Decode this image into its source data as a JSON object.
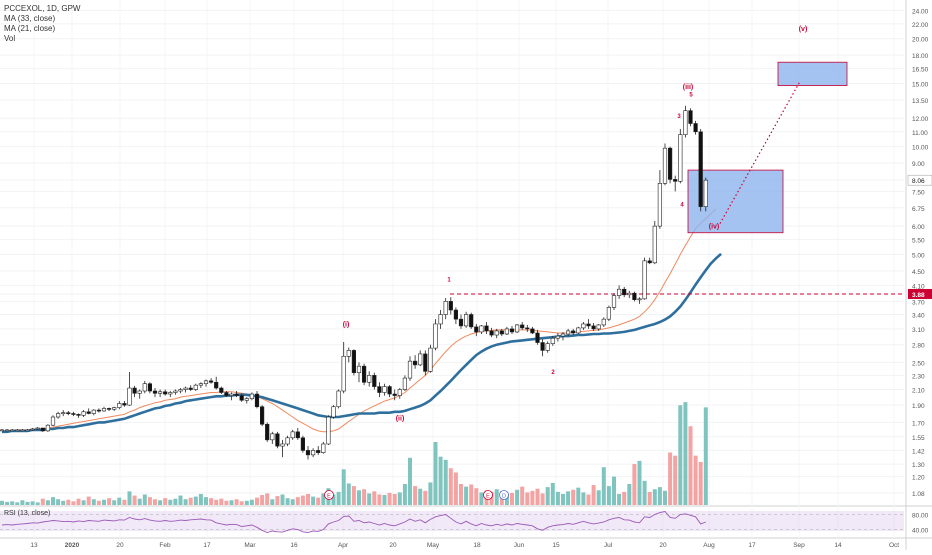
{
  "legend": {
    "symbol_line": "PCCEXOL, 1D, GPW",
    "ma33_label": "MA (33, close)",
    "ma21_label": "MA (21, close)",
    "vol_label": "Vol"
  },
  "rsi_label": "RSI (13, close)",
  "colors": {
    "up": "#ffffff",
    "up_border": "#333333",
    "down": "#111111",
    "ma33": "#2e6f9e",
    "ma21": "#f08a5d",
    "vol_up": "#7fc4be",
    "vol_down": "#f4a3a3",
    "annotation": "#cc0033",
    "box_fill": "#8fb4ee",
    "rsi_line": "#9b59b6",
    "rsi_band": "#e8d8f3"
  },
  "chart_data": {
    "type": "candlestick",
    "title": "PCCEXOL, 1D, GPW",
    "y_scale": "log",
    "y_ticks": [
      "24.00",
      "22.00",
      "20.00",
      "18.00",
      "16.50",
      "15.00",
      "13.50",
      "12.00",
      "11.00",
      "10.00",
      "9.00",
      "8.06",
      "7.50",
      "6.75",
      "6.00",
      "5.50",
      "5.00",
      "4.50",
      "4.10",
      "3.88",
      "3.70",
      "3.40",
      "3.10",
      "2.80",
      "2.50",
      "2.30",
      "2.10",
      "1.90",
      "1.70",
      "1.55",
      "1.42",
      "1.30",
      "1.20",
      "1.08"
    ],
    "x_ticks": [
      "13",
      "2020",
      "20",
      "Feb",
      "17",
      "Mar",
      "16",
      "Apr",
      "20",
      "May",
      "18",
      "Jun",
      "15",
      "Jul",
      "20",
      "Aug",
      "17",
      "Sep",
      "14",
      "Oct"
    ],
    "price_labels": {
      "last": "8.06",
      "level": "3.88"
    },
    "level_line": 3.88,
    "rsi_ticks": [
      "80.00",
      "40.00"
    ],
    "wave_labels": [
      "(i)",
      "(ii)",
      "1",
      "2",
      "(iii)",
      "3",
      "4",
      "5",
      "(iv)",
      "(v)"
    ],
    "event_markers": [
      "E",
      "E",
      "D"
    ],
    "candles": [
      [
        1.62,
        1.63,
        1.61,
        1.62
      ],
      [
        1.62,
        1.63,
        1.61,
        1.62
      ],
      [
        1.62,
        1.63,
        1.61,
        1.62
      ],
      [
        1.62,
        1.63,
        1.61,
        1.62
      ],
      [
        1.62,
        1.63,
        1.61,
        1.62
      ],
      [
        1.62,
        1.63,
        1.61,
        1.62
      ],
      [
        1.62,
        1.64,
        1.61,
        1.63
      ],
      [
        1.63,
        1.65,
        1.62,
        1.64
      ],
      [
        1.64,
        1.64,
        1.6,
        1.61
      ],
      [
        1.61,
        1.68,
        1.6,
        1.67
      ],
      [
        1.67,
        1.78,
        1.66,
        1.76
      ],
      [
        1.76,
        1.82,
        1.74,
        1.8
      ],
      [
        1.8,
        1.84,
        1.77,
        1.81
      ],
      [
        1.81,
        1.83,
        1.78,
        1.8
      ],
      [
        1.8,
        1.82,
        1.77,
        1.79
      ],
      [
        1.79,
        1.8,
        1.75,
        1.78
      ],
      [
        1.78,
        1.84,
        1.76,
        1.82
      ],
      [
        1.82,
        1.86,
        1.79,
        1.8
      ],
      [
        1.8,
        1.85,
        1.78,
        1.84
      ],
      [
        1.84,
        1.86,
        1.81,
        1.83
      ],
      [
        1.83,
        1.88,
        1.82,
        1.86
      ],
      [
        1.86,
        1.87,
        1.83,
        1.85
      ],
      [
        1.85,
        1.88,
        1.83,
        1.87
      ],
      [
        1.87,
        1.95,
        1.85,
        1.92
      ],
      [
        1.92,
        1.95,
        1.88,
        1.9
      ],
      [
        1.9,
        2.35,
        1.89,
        2.12
      ],
      [
        2.12,
        2.15,
        2.0,
        2.05
      ],
      [
        2.05,
        2.1,
        1.98,
        2.08
      ],
      [
        2.08,
        2.22,
        2.05,
        2.18
      ],
      [
        2.18,
        2.2,
        2.05,
        2.08
      ],
      [
        2.08,
        2.12,
        2.0,
        2.05
      ],
      [
        2.05,
        2.1,
        2.0,
        2.07
      ],
      [
        2.07,
        2.1,
        2.02,
        2.04
      ],
      [
        2.04,
        2.08,
        2.0,
        2.06
      ],
      [
        2.06,
        2.1,
        2.03,
        2.08
      ],
      [
        2.08,
        2.12,
        2.05,
        2.1
      ],
      [
        2.1,
        2.14,
        2.06,
        2.12
      ],
      [
        2.12,
        2.16,
        2.08,
        2.1
      ],
      [
        2.1,
        2.18,
        2.08,
        2.16
      ],
      [
        2.16,
        2.2,
        2.12,
        2.18
      ],
      [
        2.18,
        2.24,
        2.14,
        2.22
      ],
      [
        2.22,
        2.26,
        2.18,
        2.2
      ],
      [
        2.2,
        2.28,
        2.1,
        2.12
      ],
      [
        2.12,
        2.14,
        2.04,
        2.06
      ],
      [
        2.06,
        2.08,
        2.0,
        2.02
      ],
      [
        2.02,
        2.06,
        1.96,
        2.04
      ],
      [
        2.04,
        2.08,
        2.0,
        2.02
      ],
      [
        2.02,
        2.05,
        1.94,
        1.96
      ],
      [
        1.96,
        2.0,
        1.92,
        1.98
      ],
      [
        1.98,
        2.06,
        1.96,
        2.04
      ],
      [
        2.04,
        2.08,
        1.86,
        1.88
      ],
      [
        1.88,
        1.9,
        1.66,
        1.68
      ],
      [
        1.68,
        1.7,
        1.5,
        1.52
      ],
      [
        1.52,
        1.6,
        1.48,
        1.58
      ],
      [
        1.58,
        1.6,
        1.44,
        1.46
      ],
      [
        1.46,
        1.52,
        1.36,
        1.48
      ],
      [
        1.48,
        1.56,
        1.46,
        1.54
      ],
      [
        1.54,
        1.62,
        1.52,
        1.6
      ],
      [
        1.6,
        1.64,
        1.52,
        1.54
      ],
      [
        1.54,
        1.56,
        1.4,
        1.42
      ],
      [
        1.42,
        1.46,
        1.34,
        1.38
      ],
      [
        1.38,
        1.44,
        1.36,
        1.42
      ],
      [
        1.42,
        1.46,
        1.38,
        1.4
      ],
      [
        1.4,
        1.5,
        1.39,
        1.48
      ],
      [
        1.48,
        1.78,
        1.47,
        1.76
      ],
      [
        1.76,
        1.9,
        1.74,
        1.88
      ],
      [
        1.88,
        2.1,
        1.86,
        2.08
      ],
      [
        2.08,
        2.85,
        2.05,
        2.6
      ],
      [
        2.6,
        2.75,
        2.5,
        2.7
      ],
      [
        2.7,
        2.72,
        2.3,
        2.34
      ],
      [
        2.34,
        2.5,
        2.2,
        2.44
      ],
      [
        2.44,
        2.48,
        2.16,
        2.2
      ],
      [
        2.2,
        2.36,
        2.14,
        2.3
      ],
      [
        2.3,
        2.34,
        2.1,
        2.14
      ],
      [
        2.14,
        2.2,
        2.0,
        2.06
      ],
      [
        2.06,
        2.18,
        2.02,
        2.14
      ],
      [
        2.14,
        2.16,
        2.0,
        2.04
      ],
      [
        2.04,
        2.1,
        1.96,
        2.02
      ],
      [
        2.02,
        2.12,
        1.98,
        2.1
      ],
      [
        2.1,
        2.3,
        2.08,
        2.26
      ],
      [
        2.26,
        2.6,
        2.22,
        2.52
      ],
      [
        2.52,
        2.62,
        2.4,
        2.46
      ],
      [
        2.46,
        2.7,
        2.44,
        2.64
      ],
      [
        2.64,
        2.7,
        2.3,
        2.36
      ],
      [
        2.36,
        2.8,
        2.34,
        2.74
      ],
      [
        2.74,
        3.3,
        2.7,
        3.2
      ],
      [
        3.2,
        3.5,
        3.1,
        3.4
      ],
      [
        3.4,
        3.78,
        3.3,
        3.7
      ],
      [
        3.7,
        3.8,
        3.4,
        3.5
      ],
      [
        3.5,
        3.56,
        3.2,
        3.3
      ],
      [
        3.3,
        3.4,
        3.1,
        3.16
      ],
      [
        3.16,
        3.46,
        3.12,
        3.4
      ],
      [
        3.4,
        3.44,
        3.1,
        3.14
      ],
      [
        3.14,
        3.2,
        2.96,
        3.04
      ],
      [
        3.04,
        3.18,
        3.0,
        3.16
      ],
      [
        3.16,
        3.24,
        3.0,
        3.06
      ],
      [
        3.06,
        3.12,
        2.94,
        2.98
      ],
      [
        2.98,
        3.1,
        2.92,
        3.06
      ],
      [
        3.06,
        3.1,
        2.96,
        3.0
      ],
      [
        3.0,
        3.14,
        2.98,
        3.1
      ],
      [
        3.1,
        3.16,
        3.0,
        3.04
      ],
      [
        3.04,
        3.2,
        3.02,
        3.18
      ],
      [
        3.18,
        3.24,
        3.08,
        3.12
      ],
      [
        3.12,
        3.18,
        3.04,
        3.1
      ],
      [
        3.1,
        3.14,
        3.0,
        3.02
      ],
      [
        3.02,
        3.08,
        2.8,
        2.84
      ],
      [
        2.84,
        2.9,
        2.6,
        2.7
      ],
      [
        2.7,
        2.86,
        2.66,
        2.82
      ],
      [
        2.82,
        2.96,
        2.78,
        2.92
      ],
      [
        2.92,
        3.02,
        2.86,
        2.96
      ],
      [
        2.96,
        3.04,
        2.88,
        3.0
      ],
      [
        3.0,
        3.1,
        2.96,
        3.06
      ],
      [
        3.06,
        3.1,
        2.98,
        3.02
      ],
      [
        3.02,
        3.14,
        3.0,
        3.12
      ],
      [
        3.12,
        3.24,
        3.08,
        3.2
      ],
      [
        3.2,
        3.3,
        3.1,
        3.16
      ],
      [
        3.16,
        3.22,
        3.06,
        3.1
      ],
      [
        3.1,
        3.2,
        3.06,
        3.18
      ],
      [
        3.18,
        3.34,
        3.14,
        3.3
      ],
      [
        3.3,
        3.6,
        3.26,
        3.56
      ],
      [
        3.56,
        3.9,
        3.5,
        3.84
      ],
      [
        3.84,
        4.1,
        3.76,
        4.0
      ],
      [
        4.0,
        4.06,
        3.8,
        3.86
      ],
      [
        3.86,
        3.96,
        3.78,
        3.9
      ],
      [
        3.9,
        3.94,
        3.7,
        3.74
      ],
      [
        3.74,
        3.8,
        3.64,
        3.76
      ],
      [
        3.76,
        4.9,
        3.74,
        4.8
      ],
      [
        4.8,
        4.9,
        4.7,
        4.74
      ],
      [
        4.74,
        6.2,
        4.7,
        6.0
      ],
      [
        6.0,
        8.6,
        5.9,
        7.9
      ],
      [
        7.9,
        10.2,
        7.8,
        9.9
      ],
      [
        9.9,
        10.0,
        7.9,
        8.1
      ],
      [
        8.1,
        8.3,
        7.5,
        8.0
      ],
      [
        8.0,
        11.2,
        7.9,
        10.8
      ],
      [
        10.8,
        13.0,
        10.6,
        12.6
      ],
      [
        12.6,
        12.8,
        11.4,
        11.6
      ],
      [
        11.6,
        11.8,
        10.8,
        11.0
      ],
      [
        11.0,
        11.2,
        6.6,
        6.8
      ],
      [
        6.8,
        8.2,
        6.6,
        8.06
      ]
    ],
    "volumes": [
      0.8,
      0.6,
      0.7,
      0.5,
      0.9,
      0.6,
      0.7,
      0.5,
      1.2,
      0.9,
      1.5,
      1.1,
      0.8,
      1.0,
      0.7,
      1.2,
      0.9,
      1.6,
      1.1,
      0.8,
      1.0,
      1.3,
      0.9,
      1.4,
      1.0,
      2.6,
      1.8,
      1.2,
      2.0,
      1.5,
      1.1,
      0.9,
      1.3,
      1.0,
      1.2,
      1.8,
      1.1,
      1.4,
      1.6,
      2.1,
      1.5,
      1.3,
      1.0,
      1.2,
      0.8,
      0.9,
      1.1,
      0.7,
      0.8,
      1.0,
      1.4,
      1.9,
      2.2,
      1.1,
      1.7,
      2.0,
      1.3,
      1.1,
      1.5,
      1.8,
      2.1,
      1.6,
      1.4,
      2.2,
      3.2,
      2.0,
      2.5,
      6.8,
      4.1,
      3.6,
      2.8,
      3.0,
      2.2,
      2.6,
      2.0,
      1.9,
      2.3,
      2.1,
      2.4,
      4.0,
      9.0,
      3.6,
      3.1,
      2.7,
      4.3,
      12.0,
      9.2,
      8.6,
      7.0,
      6.2,
      4.0,
      3.5,
      3.9,
      3.2,
      2.4,
      2.8,
      2.5,
      3.0,
      2.6,
      2.1,
      2.3,
      2.9,
      3.5,
      2.4,
      2.7,
      3.1,
      2.2,
      3.4,
      4.2,
      2.5,
      2.1,
      2.6,
      2.9,
      3.3,
      2.4,
      2.0,
      3.8,
      2.8,
      7.2,
      3.6,
      5.4,
      2.1,
      2.5,
      4.0,
      7.8,
      8.4,
      4.6,
      2.5,
      3.0,
      3.4,
      2.7,
      10.0,
      9.4,
      19.0,
      19.6,
      15.0,
      9.4,
      8.2,
      18.6,
      9.8
    ],
    "ma33": [
      1.6,
      1.6,
      1.61,
      1.61,
      1.61,
      1.61,
      1.62,
      1.62,
      1.62,
      1.63,
      1.63,
      1.64,
      1.64,
      1.65,
      1.65,
      1.66,
      1.67,
      1.68,
      1.69,
      1.7,
      1.7,
      1.71,
      1.72,
      1.73,
      1.74,
      1.76,
      1.78,
      1.8,
      1.82,
      1.84,
      1.86,
      1.87,
      1.89,
      1.9,
      1.92,
      1.93,
      1.95,
      1.96,
      1.97,
      1.98,
      1.99,
      2.0,
      2.01,
      2.01,
      2.02,
      2.02,
      2.03,
      2.03,
      2.03,
      2.02,
      2.01,
      2.0,
      1.98,
      1.96,
      1.94,
      1.92,
      1.9,
      1.88,
      1.86,
      1.84,
      1.82,
      1.8,
      1.78,
      1.77,
      1.76,
      1.76,
      1.76,
      1.77,
      1.78,
      1.79,
      1.8,
      1.8,
      1.8,
      1.8,
      1.81,
      1.81,
      1.81,
      1.82,
      1.82,
      1.83,
      1.85,
      1.87,
      1.89,
      1.92,
      1.96,
      2.02,
      2.08,
      2.15,
      2.22,
      2.3,
      2.38,
      2.46,
      2.54,
      2.62,
      2.68,
      2.73,
      2.77,
      2.8,
      2.82,
      2.84,
      2.86,
      2.87,
      2.88,
      2.89,
      2.9,
      2.91,
      2.92,
      2.93,
      2.94,
      2.95,
      2.96,
      2.96,
      2.97,
      2.98,
      2.98,
      2.99,
      3.0,
      3.0,
      3.01,
      3.01,
      3.02,
      3.03,
      3.04,
      3.06,
      3.08,
      3.11,
      3.14,
      3.17,
      3.2,
      3.24,
      3.29,
      3.36,
      3.46,
      3.58,
      3.74,
      3.92,
      4.12,
      4.32,
      4.52,
      4.72,
      4.88,
      5.02
    ],
    "ma21": [
      1.61,
      1.61,
      1.61,
      1.62,
      1.62,
      1.62,
      1.62,
      1.63,
      1.63,
      1.64,
      1.65,
      1.66,
      1.67,
      1.68,
      1.69,
      1.7,
      1.71,
      1.72,
      1.73,
      1.74,
      1.75,
      1.76,
      1.77,
      1.78,
      1.79,
      1.82,
      1.84,
      1.87,
      1.89,
      1.91,
      1.93,
      1.94,
      1.96,
      1.97,
      1.98,
      2.0,
      2.01,
      2.02,
      2.03,
      2.04,
      2.05,
      2.06,
      2.06,
      2.07,
      2.07,
      2.07,
      2.06,
      2.05,
      2.04,
      2.03,
      2.01,
      1.98,
      1.95,
      1.92,
      1.88,
      1.84,
      1.8,
      1.76,
      1.72,
      1.69,
      1.66,
      1.63,
      1.61,
      1.6,
      1.6,
      1.61,
      1.63,
      1.67,
      1.71,
      1.75,
      1.79,
      1.83,
      1.86,
      1.89,
      1.92,
      1.95,
      1.97,
      1.99,
      2.02,
      2.06,
      2.12,
      2.18,
      2.24,
      2.3,
      2.38,
      2.48,
      2.58,
      2.68,
      2.77,
      2.85,
      2.91,
      2.96,
      3.0,
      3.03,
      3.05,
      3.06,
      3.07,
      3.08,
      3.08,
      3.08,
      3.08,
      3.08,
      3.08,
      3.08,
      3.07,
      3.06,
      3.05,
      3.04,
      3.03,
      3.02,
      3.02,
      3.02,
      3.03,
      3.04,
      3.05,
      3.06,
      3.07,
      3.08,
      3.1,
      3.12,
      3.15,
      3.18,
      3.22,
      3.26,
      3.3,
      3.36,
      3.46,
      3.58,
      3.74,
      3.94,
      4.18,
      4.42,
      4.7,
      5.0,
      5.3,
      5.6,
      5.9,
      6.1,
      6.3,
      6.5,
      6.7
    ],
    "rsi": [
      52,
      53,
      52,
      54,
      55,
      56,
      58,
      57,
      60,
      62,
      64,
      63,
      61,
      62,
      60,
      63,
      61,
      64,
      63,
      62,
      65,
      64,
      63,
      66,
      65,
      72,
      68,
      66,
      69,
      65,
      63,
      62,
      64,
      62,
      63,
      65,
      64,
      66,
      67,
      68,
      66,
      65,
      58,
      55,
      52,
      54,
      53,
      48,
      50,
      52,
      46,
      38,
      32,
      36,
      34,
      33,
      38,
      42,
      40,
      34,
      32,
      36,
      35,
      40,
      55,
      60,
      64,
      75,
      76,
      62,
      64,
      58,
      60,
      56,
      52,
      56,
      52,
      50,
      55,
      60,
      68,
      62,
      66,
      58,
      67,
      74,
      77,
      80,
      70,
      60,
      55,
      62,
      55,
      50,
      56,
      52,
      50,
      54,
      51,
      55,
      52,
      56,
      54,
      52,
      50,
      42,
      38,
      46,
      50,
      52,
      53,
      56,
      54,
      58,
      62,
      58,
      55,
      57,
      60,
      66,
      70,
      72,
      66,
      65,
      60,
      58,
      74,
      72,
      80,
      85,
      88,
      72,
      70,
      80,
      82,
      78,
      74,
      55,
      60
    ]
  }
}
